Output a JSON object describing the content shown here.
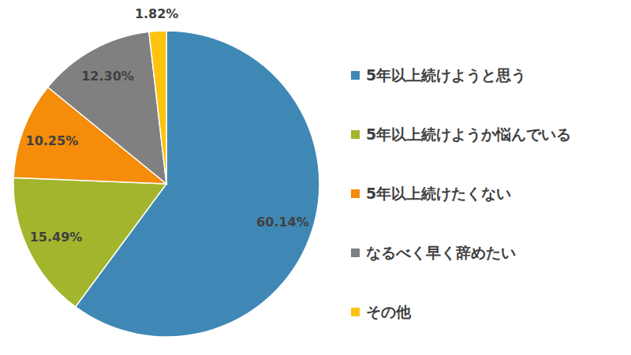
{
  "chart_data": {
    "type": "pie",
    "categories": [
      "5年以上続けようと思う",
      "5年以上続けようか悩んでいる",
      "5年以上続けたくない",
      "なるべく早く辞めたい",
      "その他"
    ],
    "values": [
      60.14,
      15.49,
      10.25,
      12.3,
      1.82
    ],
    "value_labels": [
      "60.14%",
      "15.49%",
      "10.25%",
      "12.30%",
      "1.82%"
    ],
    "colors": [
      "#3f88b5",
      "#a3b52c",
      "#f58c0a",
      "#808080",
      "#ffc20e"
    ],
    "data_labels": true,
    "legend": "right"
  }
}
